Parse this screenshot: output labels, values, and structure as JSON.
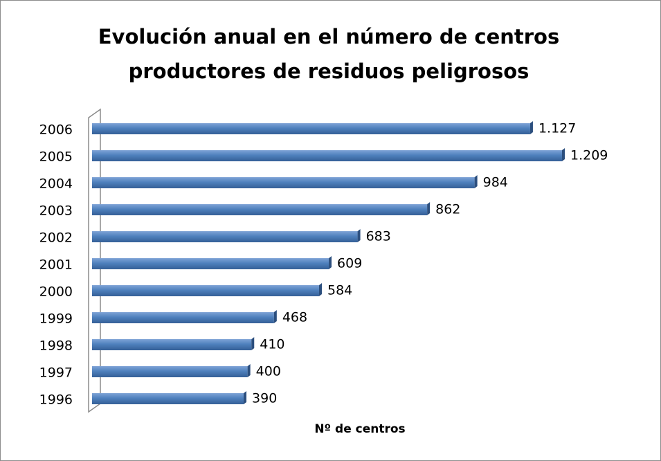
{
  "chart_data": {
    "type": "bar",
    "orientation": "horizontal",
    "title": "Evolución anual en el número de centros productores de residuos peligrosos",
    "x_label": "Nº de centros",
    "categories": [
      "2006",
      "2005",
      "2004",
      "2003",
      "2002",
      "2001",
      "2000",
      "1999",
      "1998",
      "1997",
      "1996"
    ],
    "values": [
      1127,
      1209,
      984,
      862,
      683,
      609,
      584,
      468,
      410,
      400,
      390
    ],
    "value_labels": [
      "1.127",
      "1.209",
      "984",
      "862",
      "683",
      "609",
      "584",
      "468",
      "410",
      "400",
      "390"
    ],
    "color": "#4f81bd"
  }
}
